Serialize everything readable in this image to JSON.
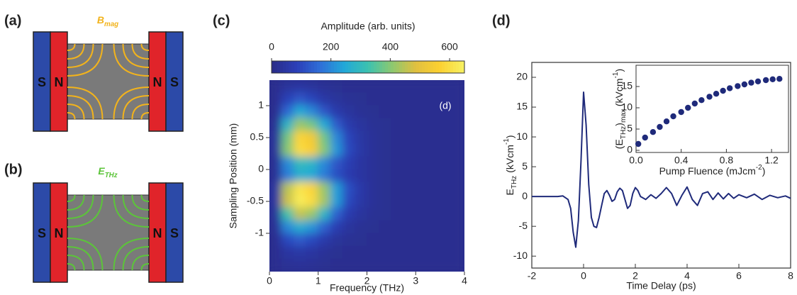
{
  "panel_labels": [
    "(a)",
    "(b)",
    "(c)",
    "(d)"
  ],
  "diagram_a": {
    "magnets": [
      "S",
      "N",
      "N",
      "S"
    ],
    "field": {
      "symbol": "B",
      "subscript": "mag"
    },
    "color": "#f2b31c"
  },
  "diagram_b": {
    "magnets": [
      "S",
      "N",
      "N",
      "S"
    ],
    "field": {
      "symbol": "E",
      "subscript": "THz"
    },
    "color": "#5cc43a"
  },
  "chart_data": [
    {
      "type": "heatmap",
      "annotation": "(d)",
      "colorbar_label": "Amplitude (arb. units)",
      "x_label": "Frequency (THz)",
      "y_label": "Sampling Position (mm)",
      "x": [
        0.125,
        0.375,
        0.625,
        0.875,
        1.125,
        1.375,
        1.625,
        1.875,
        2.125,
        2.375,
        2.625,
        2.875,
        3.125,
        3.375,
        3.625,
        3.875
      ],
      "y": [
        1.3,
        1.1,
        0.9,
        0.7,
        0.5,
        0.3,
        0.1,
        -0.1,
        -0.3,
        -0.5,
        -0.7,
        -0.9,
        -1.1,
        -1.3,
        -1.5
      ],
      "z": [
        [
          10,
          30,
          40,
          30,
          20,
          15,
          10,
          10,
          10,
          10,
          10,
          10,
          10,
          10,
          10,
          10
        ],
        [
          10,
          80,
          120,
          90,
          50,
          30,
          20,
          15,
          10,
          10,
          10,
          10,
          10,
          10,
          10,
          10
        ],
        [
          10,
          150,
          250,
          200,
          120,
          60,
          35,
          20,
          15,
          10,
          10,
          10,
          10,
          10,
          10,
          10
        ],
        [
          20,
          280,
          420,
          380,
          250,
          130,
          60,
          35,
          20,
          15,
          10,
          10,
          10,
          10,
          10,
          10
        ],
        [
          30,
          380,
          580,
          540,
          380,
          200,
          90,
          45,
          25,
          15,
          10,
          10,
          10,
          10,
          10,
          10
        ],
        [
          30,
          400,
          600,
          560,
          400,
          220,
          100,
          50,
          25,
          15,
          10,
          10,
          10,
          10,
          10,
          10
        ],
        [
          20,
          200,
          300,
          280,
          200,
          120,
          70,
          40,
          25,
          15,
          10,
          10,
          10,
          10,
          10,
          10
        ],
        [
          20,
          180,
          260,
          250,
          180,
          110,
          65,
          40,
          25,
          15,
          10,
          10,
          10,
          10,
          10,
          10
        ],
        [
          40,
          450,
          620,
          580,
          420,
          230,
          110,
          55,
          25,
          15,
          10,
          10,
          10,
          10,
          10,
          10
        ],
        [
          40,
          470,
          640,
          600,
          430,
          230,
          100,
          50,
          25,
          15,
          10,
          10,
          10,
          10,
          10,
          10
        ],
        [
          30,
          330,
          460,
          420,
          280,
          140,
          65,
          35,
          20,
          15,
          10,
          10,
          10,
          10,
          10,
          10
        ],
        [
          20,
          200,
          260,
          220,
          140,
          70,
          35,
          20,
          15,
          10,
          10,
          10,
          10,
          10,
          10,
          10
        ],
        [
          10,
          100,
          130,
          100,
          60,
          30,
          20,
          15,
          10,
          10,
          10,
          10,
          10,
          10,
          10,
          10
        ],
        [
          10,
          40,
          50,
          40,
          25,
          15,
          10,
          10,
          10,
          10,
          10,
          10,
          10,
          10,
          10,
          10
        ],
        [
          10,
          20,
          25,
          20,
          15,
          10,
          10,
          10,
          10,
          10,
          10,
          10,
          10,
          10,
          10,
          10
        ]
      ],
      "xlim": [
        0,
        4
      ],
      "xticks": [
        0,
        1,
        2,
        3,
        4
      ],
      "ylim": [
        -1.6,
        1.4
      ],
      "yticks": [
        -1,
        -0.5,
        0,
        0.5,
        1
      ],
      "zlim": [
        0,
        650
      ],
      "zticks": [
        0,
        200,
        400,
        600
      ],
      "colormap": [
        "#2a2d8a",
        "#2b3fb8",
        "#2f6fd8",
        "#22a8d8",
        "#3cc2b0",
        "#8cc870",
        "#e0c040",
        "#fcd030",
        "#f7f060"
      ]
    },
    {
      "type": "line",
      "x_label": "Time Delay (ps)",
      "y_label": [
        {
          "text": "E"
        },
        {
          "text": "THz",
          "shift": "sub"
        },
        {
          "text": " (kVcm"
        },
        {
          "text": "-1",
          "shift": "sup"
        },
        {
          "text": ")"
        }
      ],
      "x": [
        -2,
        -1.5,
        -1,
        -0.8,
        -0.6,
        -0.5,
        -0.4,
        -0.3,
        -0.2,
        -0.1,
        0,
        0.1,
        0.2,
        0.3,
        0.4,
        0.5,
        0.6,
        0.7,
        0.8,
        0.9,
        1.0,
        1.1,
        1.2,
        1.3,
        1.4,
        1.5,
        1.6,
        1.7,
        1.8,
        1.9,
        2.0,
        2.1,
        2.2,
        2.4,
        2.6,
        2.8,
        3.0,
        3.2,
        3.4,
        3.6,
        3.8,
        4.0,
        4.2,
        4.4,
        4.6,
        4.8,
        5.0,
        5.2,
        5.4,
        5.6,
        5.8,
        6.0,
        6.3,
        6.6,
        6.9,
        7.2,
        7.5,
        7.8,
        8.0
      ],
      "values": [
        0,
        0,
        0,
        0.1,
        -0.5,
        -2,
        -6,
        -8.5,
        -4,
        6,
        17.5,
        12,
        2,
        -3.5,
        -5,
        -5.2,
        -3.5,
        -1.5,
        0.5,
        1,
        0.2,
        -0.8,
        -0.5,
        0.8,
        1.4,
        1,
        -0.5,
        -2,
        -1.5,
        0.5,
        1.5,
        1,
        0,
        -0.5,
        0.3,
        -0.3,
        0.5,
        1.5,
        0.5,
        -1.5,
        0.2,
        1.6,
        -0.5,
        -1.5,
        0.5,
        0.8,
        -0.5,
        0.6,
        -0.4,
        0.5,
        -0.3,
        0.3,
        -0.2,
        0.4,
        -0.5,
        0.2,
        -0.2,
        0.1,
        -0.3
      ],
      "color": "#1f2a7a",
      "xlim": [
        -2,
        8
      ],
      "xticks": [
        -2,
        0,
        2,
        4,
        6,
        8
      ],
      "ylim": [
        -12,
        22.5
      ],
      "yticks": [
        -10,
        -5,
        0,
        5,
        10,
        15,
        20
      ]
    },
    {
      "type": "scatter",
      "x_label": [
        {
          "text": "Pump Fluence (mJcm"
        },
        {
          "text": "-2",
          "shift": "sup"
        },
        {
          "text": ")"
        }
      ],
      "y_label": [
        {
          "text": "(E"
        },
        {
          "text": "THz",
          "shift": "sub"
        },
        {
          "text": ")"
        },
        {
          "text": "max",
          "shift": "sub"
        },
        {
          "text": " (kVcm"
        },
        {
          "text": "-1",
          "shift": "sup"
        },
        {
          "text": ")"
        }
      ],
      "x": [
        0.02,
        0.08,
        0.15,
        0.21,
        0.27,
        0.33,
        0.4,
        0.46,
        0.52,
        0.58,
        0.65,
        0.71,
        0.77,
        0.83,
        0.9,
        0.96,
        1.02,
        1.08,
        1.15,
        1.21,
        1.27
      ],
      "values": [
        1.5,
        3,
        4.3,
        5.5,
        6.8,
        8,
        9,
        10,
        11,
        11.8,
        12.6,
        13.3,
        14,
        14.6,
        15.1,
        15.5,
        15.9,
        16.2,
        16.5,
        16.7,
        16.8
      ],
      "color": "#1f2a7a",
      "xlim": [
        0,
        1.35
      ],
      "xticks": [
        {
          "value": 0,
          "label": "0.0"
        },
        0.4,
        0.8,
        1.2
      ],
      "ylim": [
        -0.5,
        20
      ],
      "yticks": [
        0,
        5,
        10,
        15
      ]
    }
  ]
}
